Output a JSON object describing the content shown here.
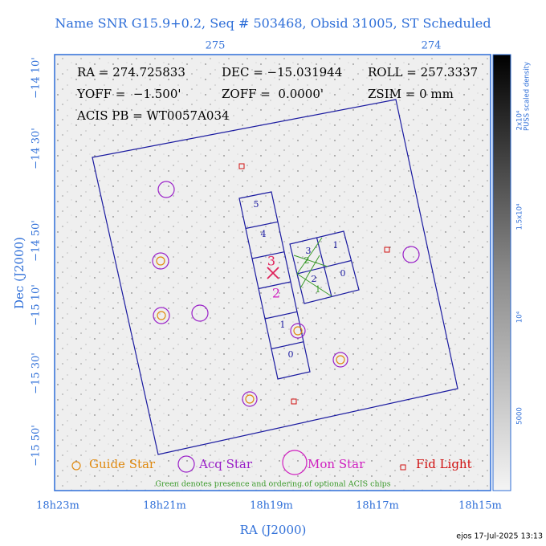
{
  "title": "Name SNR G15.9+0.2, Seq # 503468, Obsid 31005, ST Scheduled",
  "top_axis": {
    "ticks": [
      "275",
      "274"
    ]
  },
  "left_axis": {
    "label": "Dec (J2000)",
    "ticks": [
      "−14 10'",
      "−14 30'",
      "−14 50'",
      "−15 10'",
      "−15 30'",
      "−15 50'"
    ]
  },
  "bottom_axis": {
    "label": "RA (J2000)",
    "ticks": [
      "18h23m",
      "18h21m",
      "18h19m",
      "18h17m",
      "18h15m"
    ]
  },
  "info": [
    [
      "RA = 274.725833",
      "DEC = −15.031944",
      "ROLL = 257.3337"
    ],
    [
      "YOFF =  −1.500'",
      "ZOFF =  0.0000'",
      "ZSIM = 0 mm"
    ],
    [
      "ACIS PB = WT0057A034"
    ]
  ],
  "chips": {
    "s_array": [
      "5",
      "4",
      "3",
      "2",
      "1",
      "0"
    ],
    "i_array": [
      "3",
      "1",
      "2",
      "0"
    ],
    "optional": [
      "2",
      "1"
    ]
  },
  "legend": [
    "Guide Star",
    "Acq Star",
    "Mon Star",
    "Fid Light"
  ],
  "note": "Green denotes presence and ordering of optional ACIS chips",
  "colorbar": {
    "label": "PUSS scaled density",
    "ticks": [
      "2x10⁴",
      "1.5x10⁴",
      "10⁴",
      "5000"
    ]
  },
  "footer": "ejos 17-Jul-2025 13:13"
}
